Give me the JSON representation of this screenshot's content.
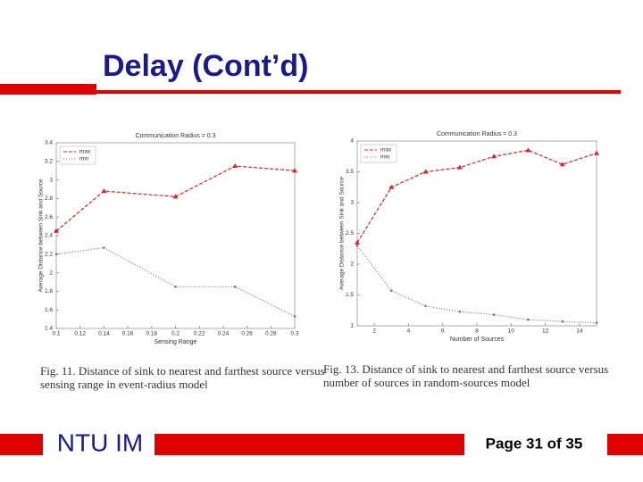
{
  "slide_title": "Delay (Cont’d)",
  "chart_data": [
    {
      "type": "line",
      "title": "Communication Radius = 0.3",
      "x_label": "Sensing Range",
      "y_label": "Average Distance between Sink and Source",
      "x": [
        0.1,
        0.14,
        0.2,
        0.25,
        0.3
      ],
      "series": [
        {
          "name": "max",
          "color": "#e02020",
          "values": [
            2.45,
            2.88,
            2.82,
            3.15,
            3.1
          ]
        },
        {
          "name": "min",
          "color": "#6070d0",
          "values": [
            2.2,
            2.27,
            1.85,
            1.85,
            1.53
          ]
        }
      ],
      "xlim": [
        0.1,
        0.3
      ],
      "xticks": [
        0.1,
        0.12,
        0.14,
        0.16,
        0.18,
        0.2,
        0.22,
        0.24,
        0.26,
        0.28,
        0.3
      ],
      "ylim": [
        1.4,
        3.4
      ],
      "yticks": [
        1.4,
        1.6,
        1.8,
        2,
        2.2,
        2.4,
        2.6,
        2.8,
        3,
        3.2,
        3.4
      ],
      "legend": "upper left"
    },
    {
      "type": "line",
      "title": "Communication Radius = 0.3",
      "x_label": "Number of Sources",
      "y_label": "Average Distance between Sink and Source",
      "x": [
        1,
        3,
        5,
        7,
        9,
        11,
        13,
        15
      ],
      "series": [
        {
          "name": "max",
          "color": "#e02020",
          "values": [
            2.35,
            3.25,
            3.5,
            3.57,
            3.75,
            3.85,
            3.62,
            3.8
          ]
        },
        {
          "name": "min",
          "color": "#6070d0",
          "values": [
            2.3,
            1.57,
            1.32,
            1.23,
            1.18,
            1.1,
            1.07,
            1.05
          ]
        }
      ],
      "xlim": [
        1,
        15
      ],
      "xticks": [
        2,
        4,
        6,
        8,
        10,
        12,
        14
      ],
      "ylim": [
        1,
        4
      ],
      "yticks": [
        1,
        1.5,
        2,
        2.5,
        3,
        3.5,
        4
      ],
      "legend": "upper left"
    }
  ],
  "captions": [
    "Fig. 11. Distance of sink to nearest and farthest source versus sensing range in event-radius model",
    "Fig. 13. Distance of sink to nearest and farthest source versus number of sources in random-sources model"
  ],
  "footer": {
    "left": "NTU IM",
    "right": "Page 31 of 35"
  }
}
